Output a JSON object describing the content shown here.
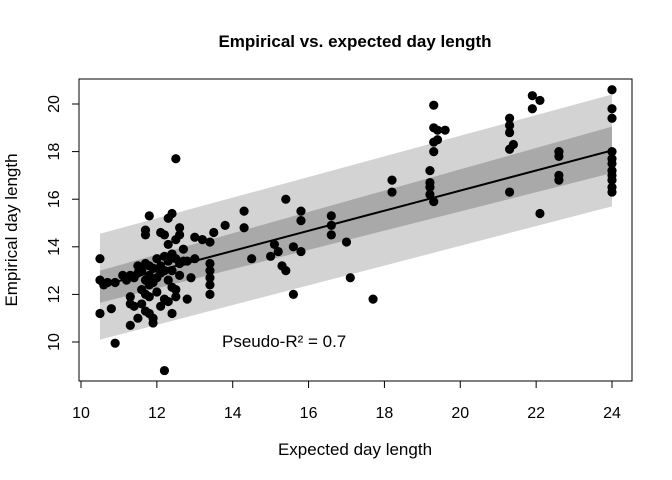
{
  "chart_data": {
    "type": "scatter",
    "title": "Empirical vs. expected day length",
    "xlabel": "Expected day length",
    "ylabel": "Empirical day length",
    "xlim": [
      10,
      24
    ],
    "ylim": [
      9,
      21
    ],
    "x_ticks": [
      10,
      12,
      14,
      16,
      18,
      20,
      22,
      24
    ],
    "y_ticks": [
      10,
      12,
      14,
      16,
      18,
      20
    ],
    "grid": false,
    "annotation": "Pseudo-R² =  0.7",
    "fit_line": {
      "x": [
        10.5,
        24.0
      ],
      "y": [
        12.35,
        18.05
      ]
    },
    "confidence_band": {
      "x": [
        10.5,
        24.0
      ],
      "lower": [
        11.65,
        17.1
      ],
      "upper": [
        13.0,
        19.05
      ],
      "color": "#a9a9a9"
    },
    "prediction_band": {
      "x": [
        10.5,
        24.0
      ],
      "lower": [
        10.1,
        15.7
      ],
      "upper": [
        14.55,
        20.4
      ],
      "color": "#d3d3d3"
    },
    "point_color": "#000000",
    "points": [
      [
        10.5,
        13.5
      ],
      [
        10.5,
        12.6
      ],
      [
        10.5,
        11.2
      ],
      [
        10.6,
        12.4
      ],
      [
        10.7,
        12.5
      ],
      [
        10.8,
        11.4
      ],
      [
        10.9,
        9.95
      ],
      [
        10.9,
        12.5
      ],
      [
        11.1,
        12.8
      ],
      [
        11.2,
        12.6
      ],
      [
        11.3,
        12.8
      ],
      [
        11.3,
        11.9
      ],
      [
        11.3,
        11.6
      ],
      [
        11.3,
        10.7
      ],
      [
        11.4,
        12.7
      ],
      [
        11.4,
        11.5
      ],
      [
        11.5,
        12.9
      ],
      [
        11.5,
        13.2
      ],
      [
        11.5,
        11.0
      ],
      [
        11.6,
        13.0
      ],
      [
        11.6,
        12.2
      ],
      [
        11.6,
        11.6
      ],
      [
        11.7,
        14.7
      ],
      [
        11.7,
        14.5
      ],
      [
        11.7,
        13.3
      ],
      [
        11.7,
        12.6
      ],
      [
        11.7,
        12.0
      ],
      [
        11.7,
        11.3
      ],
      [
        11.8,
        15.3
      ],
      [
        11.8,
        13.2
      ],
      [
        11.8,
        12.8
      ],
      [
        11.8,
        12.4
      ],
      [
        11.8,
        11.9
      ],
      [
        11.8,
        11.2
      ],
      [
        11.9,
        13.1
      ],
      [
        11.9,
        12.5
      ],
      [
        11.9,
        11.0
      ],
      [
        11.9,
        10.8
      ],
      [
        12.0,
        13.5
      ],
      [
        12.0,
        12.7
      ],
      [
        12.0,
        12.1
      ],
      [
        12.1,
        14.6
      ],
      [
        12.1,
        13.2
      ],
      [
        12.1,
        12.9
      ],
      [
        12.1,
        11.5
      ],
      [
        12.2,
        14.5
      ],
      [
        12.2,
        13.6
      ],
      [
        12.2,
        13.0
      ],
      [
        12.2,
        11.8
      ],
      [
        12.2,
        8.8
      ],
      [
        12.3,
        15.2
      ],
      [
        12.3,
        14.1
      ],
      [
        12.3,
        13.4
      ],
      [
        12.3,
        12.6
      ],
      [
        12.3,
        11.7
      ],
      [
        12.4,
        15.4
      ],
      [
        12.4,
        13.7
      ],
      [
        12.4,
        13.0
      ],
      [
        12.4,
        12.3
      ],
      [
        12.4,
        11.2
      ],
      [
        12.5,
        17.7
      ],
      [
        12.5,
        14.3
      ],
      [
        12.5,
        13.5
      ],
      [
        12.5,
        12.2
      ],
      [
        12.5,
        11.9
      ],
      [
        12.6,
        14.8
      ],
      [
        12.6,
        14.5
      ],
      [
        12.6,
        13.3
      ],
      [
        12.6,
        12.8
      ],
      [
        12.7,
        13.9
      ],
      [
        12.7,
        13.4
      ],
      [
        12.8,
        13.4
      ],
      [
        12.8,
        11.8
      ],
      [
        12.9,
        12.7
      ],
      [
        13.0,
        14.4
      ],
      [
        13.0,
        13.5
      ],
      [
        13.2,
        14.3
      ],
      [
        13.4,
        14.2
      ],
      [
        13.4,
        13.3
      ],
      [
        13.4,
        13.0
      ],
      [
        13.4,
        12.7
      ],
      [
        13.4,
        12.4
      ],
      [
        13.4,
        12.0
      ],
      [
        13.5,
        14.6
      ],
      [
        13.8,
        14.9
      ],
      [
        14.3,
        15.5
      ],
      [
        14.3,
        14.8
      ],
      [
        14.5,
        13.5
      ],
      [
        15.0,
        13.6
      ],
      [
        15.1,
        14.1
      ],
      [
        15.2,
        13.8
      ],
      [
        15.3,
        13.2
      ],
      [
        15.4,
        13.0
      ],
      [
        15.4,
        16.0
      ],
      [
        15.6,
        14.0
      ],
      [
        15.6,
        12.0
      ],
      [
        15.8,
        15.5
      ],
      [
        15.8,
        15.1
      ],
      [
        15.8,
        13.8
      ],
      [
        16.6,
        15.3
      ],
      [
        16.6,
        14.5
      ],
      [
        16.6,
        14.9
      ],
      [
        17.0,
        14.2
      ],
      [
        17.1,
        12.7
      ],
      [
        17.7,
        11.8
      ],
      [
        18.2,
        16.8
      ],
      [
        18.2,
        16.3
      ],
      [
        19.2,
        17.2
      ],
      [
        19.2,
        16.7
      ],
      [
        19.2,
        16.5
      ],
      [
        19.2,
        16.2
      ],
      [
        19.3,
        19.95
      ],
      [
        19.3,
        19.0
      ],
      [
        19.3,
        18.4
      ],
      [
        19.3,
        18.0
      ],
      [
        19.3,
        15.9
      ],
      [
        19.4,
        18.9
      ],
      [
        19.4,
        18.5
      ],
      [
        19.6,
        18.9
      ],
      [
        21.3,
        19.4
      ],
      [
        21.3,
        19.1
      ],
      [
        21.3,
        18.8
      ],
      [
        21.3,
        18.1
      ],
      [
        21.3,
        16.3
      ],
      [
        21.4,
        18.3
      ],
      [
        21.9,
        20.35
      ],
      [
        21.9,
        19.8
      ],
      [
        22.1,
        20.15
      ],
      [
        22.1,
        15.4
      ],
      [
        22.6,
        18.0
      ],
      [
        22.6,
        17.8
      ],
      [
        22.6,
        17.0
      ],
      [
        22.6,
        16.8
      ],
      [
        24.0,
        20.6
      ],
      [
        24.0,
        19.8
      ],
      [
        24.0,
        19.4
      ],
      [
        24.0,
        18.0
      ],
      [
        24.0,
        17.7
      ],
      [
        24.0,
        17.5
      ],
      [
        24.0,
        17.2
      ],
      [
        24.0,
        17.0
      ],
      [
        24.0,
        16.8
      ],
      [
        24.0,
        16.5
      ],
      [
        24.0,
        16.3
      ]
    ]
  }
}
